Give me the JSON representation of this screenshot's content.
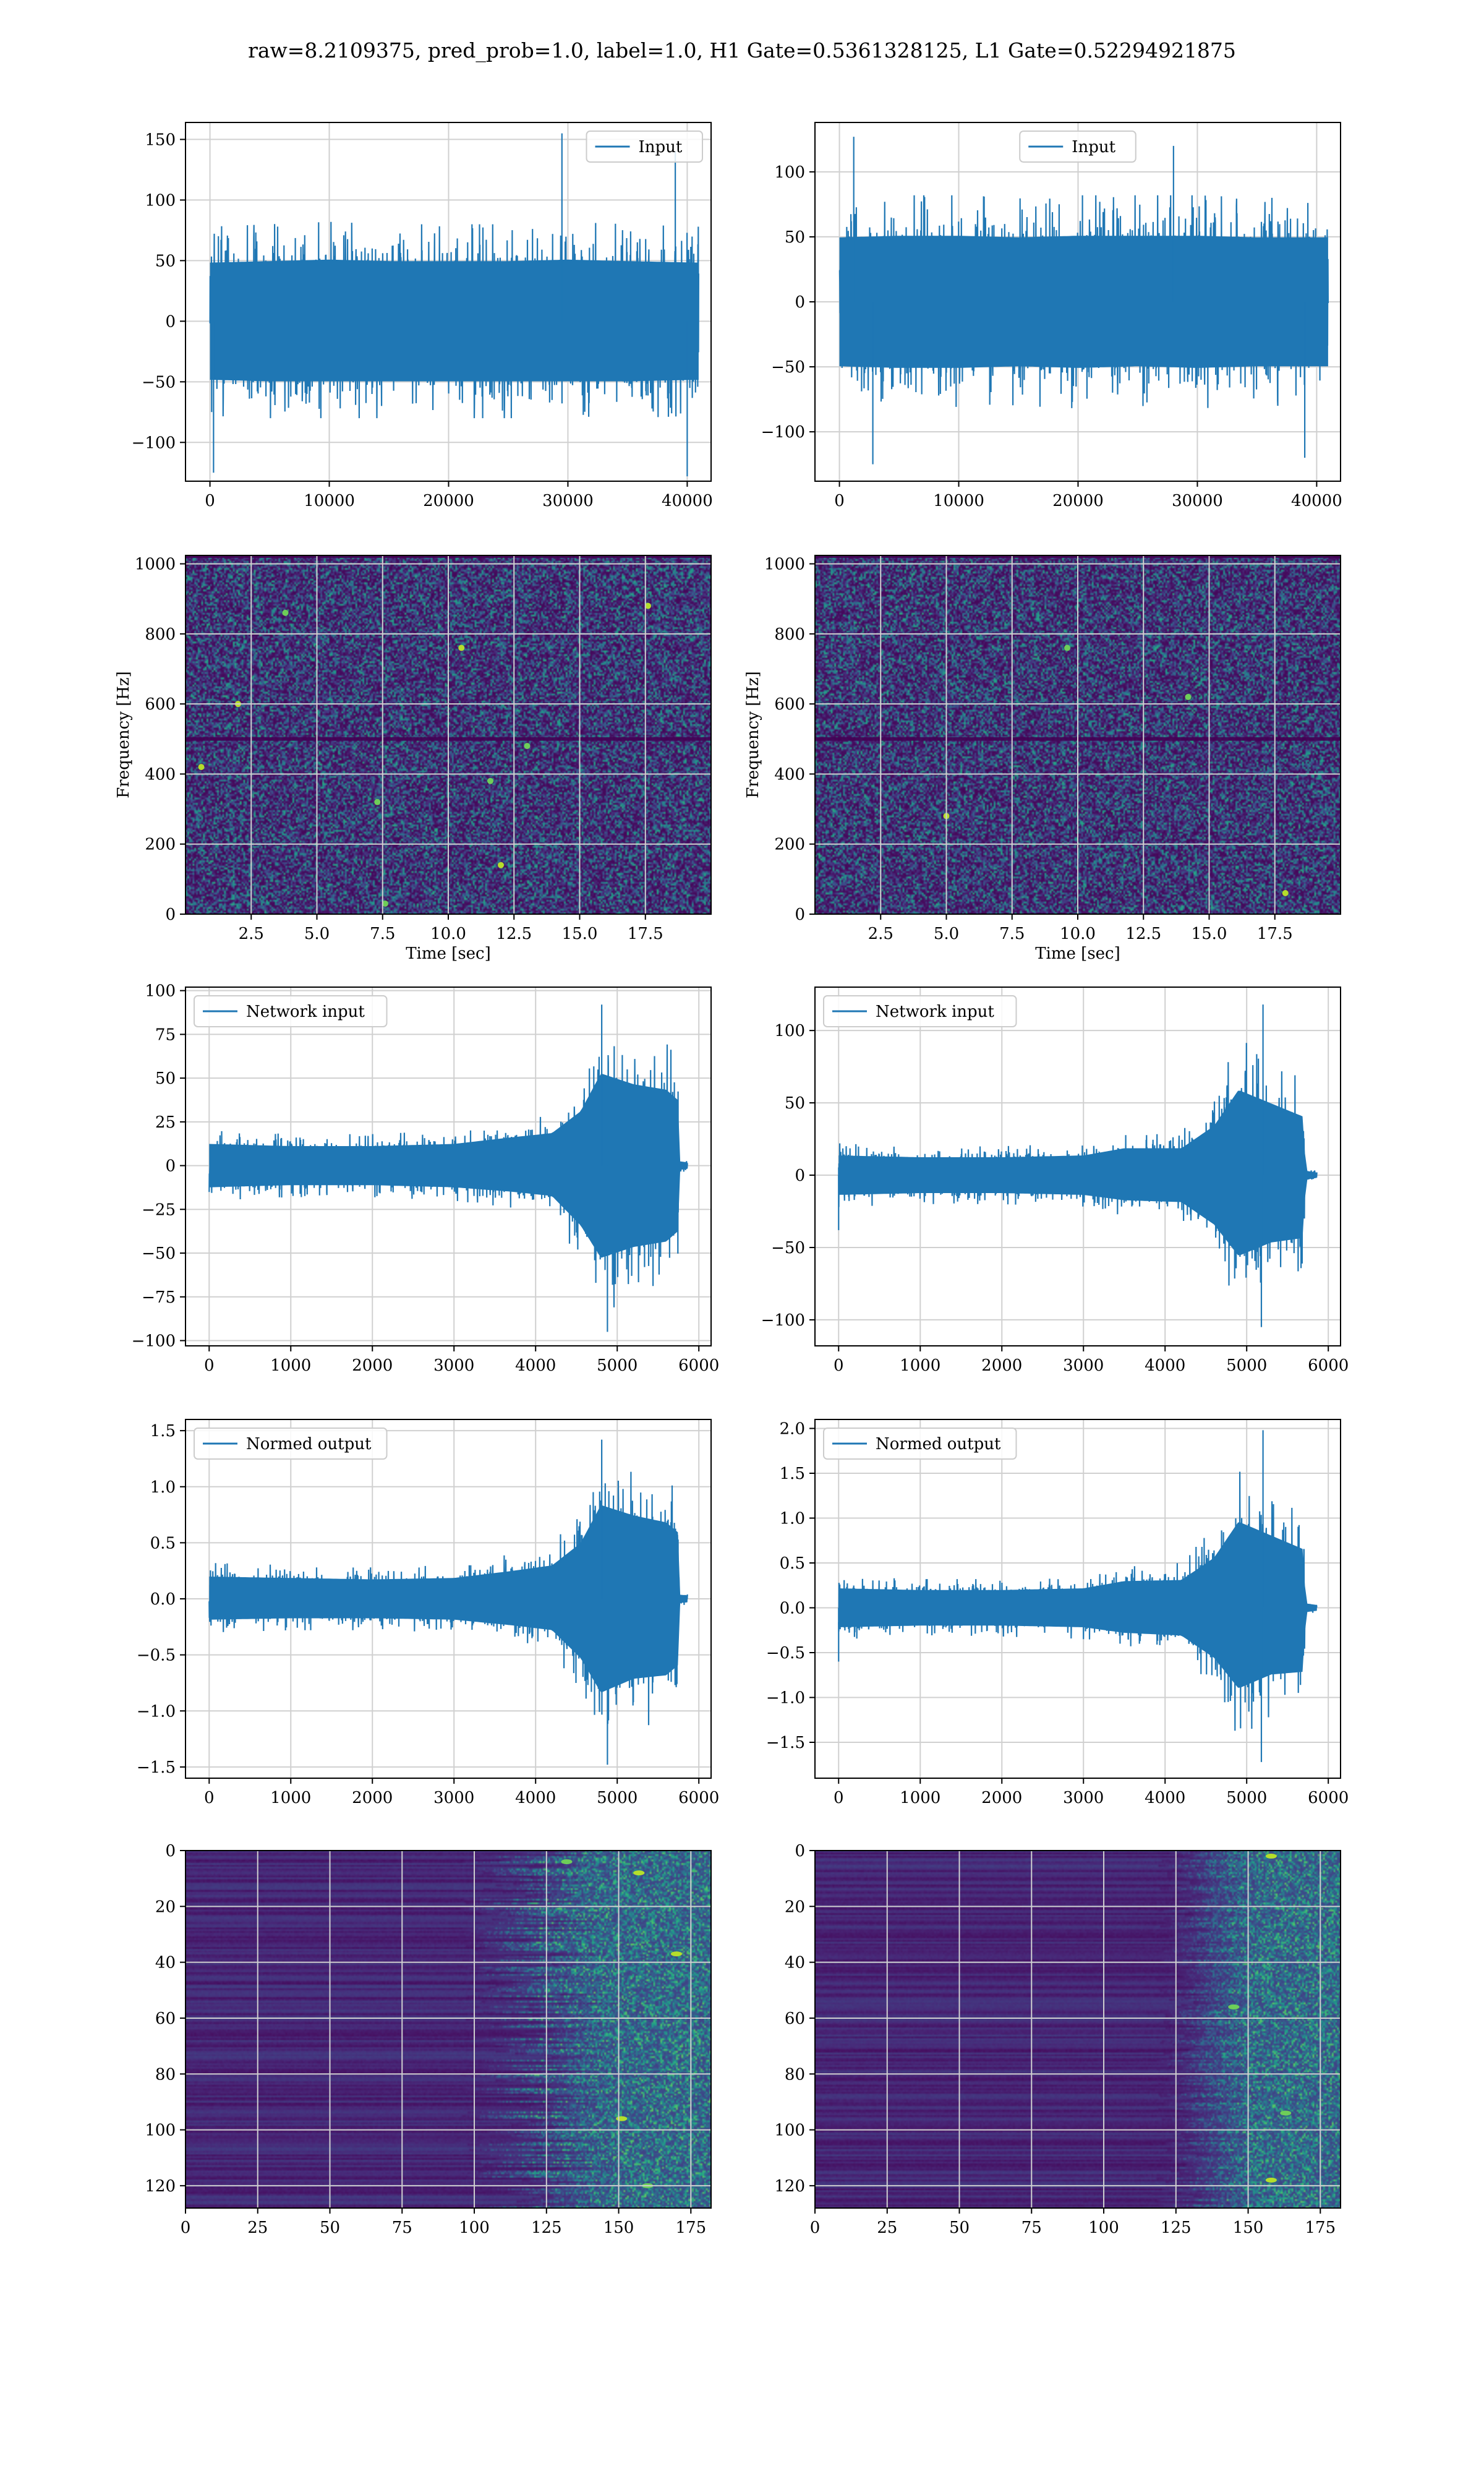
{
  "suptitle": "raw=8.2109375, pred_prob=1.0, label=1.0, H1 Gate=0.5361328125, L1 Gate=0.52294921875",
  "colors": {
    "line": "#1f77b4",
    "grid": "#d0d0d0",
    "viridis": [
      "#440154",
      "#482878",
      "#3e4989",
      "#31688e",
      "#26828e",
      "#1f9e89",
      "#35b779",
      "#6ece58",
      "#b5de2b",
      "#fde725"
    ]
  },
  "chart_data": [
    {
      "id": "h1-input",
      "type": "line",
      "col": 0,
      "row": 0,
      "legend": "Input",
      "legend_position": "upper right",
      "xlim": [
        -2050,
        42000
      ],
      "ylim": [
        -132,
        164
      ],
      "xticks": [
        0,
        10000,
        20000,
        30000,
        40000
      ],
      "xticklabels": [
        "0",
        "10000",
        "20000",
        "30000",
        "40000"
      ],
      "yticks": [
        -100,
        -50,
        0,
        50,
        100,
        150
      ],
      "yticklabels": [
        "−100",
        "−50",
        "0",
        "50",
        "100",
        "150"
      ],
      "grid": true,
      "series": [
        {
          "n_samples": 40960,
          "envelope": [
            {
              "x": 0,
              "lo": -78,
              "hi": 78
            },
            {
              "x": 5000,
              "lo": -80,
              "hi": 80
            },
            {
              "x": 10000,
              "lo": -80,
              "hi": 82
            },
            {
              "x": 15000,
              "lo": -80,
              "hi": 80
            },
            {
              "x": 20000,
              "lo": -80,
              "hi": 80
            },
            {
              "x": 25000,
              "lo": -80,
              "hi": 80
            },
            {
              "x": 30000,
              "lo": -80,
              "hi": 82
            },
            {
              "x": 35000,
              "lo": -80,
              "hi": 80
            },
            {
              "x": 40960,
              "lo": -78,
              "hi": 78
            }
          ],
          "peaks": [
            {
              "x": 29500,
              "y": 155
            },
            {
              "x": 39000,
              "y": 140
            },
            {
              "x": 300,
              "y": -125
            },
            {
              "x": 40000,
              "y": -128
            }
          ]
        }
      ]
    },
    {
      "id": "l1-input",
      "type": "line",
      "col": 1,
      "row": 0,
      "legend": "Input",
      "legend_position": "upper center",
      "xlim": [
        -2050,
        42000
      ],
      "ylim": [
        -138,
        138
      ],
      "xticks": [
        0,
        10000,
        20000,
        30000,
        40000
      ],
      "xticklabels": [
        "0",
        "10000",
        "20000",
        "30000",
        "40000"
      ],
      "yticks": [
        -100,
        -50,
        0,
        50,
        100
      ],
      "yticklabels": [
        "−100",
        "−50",
        "0",
        "50",
        "100"
      ],
      "grid": true,
      "series": [
        {
          "n_samples": 40960,
          "envelope": [
            {
              "x": 0,
              "lo": -80,
              "hi": 80
            },
            {
              "x": 5000,
              "lo": -82,
              "hi": 82
            },
            {
              "x": 10000,
              "lo": -82,
              "hi": 82
            },
            {
              "x": 15000,
              "lo": -80,
              "hi": 80
            },
            {
              "x": 20000,
              "lo": -82,
              "hi": 82
            },
            {
              "x": 25000,
              "lo": -80,
              "hi": 82
            },
            {
              "x": 30000,
              "lo": -82,
              "hi": 82
            },
            {
              "x": 35000,
              "lo": -80,
              "hi": 80
            },
            {
              "x": 40960,
              "lo": -80,
              "hi": 80
            }
          ],
          "peaks": [
            {
              "x": 1200,
              "y": 127
            },
            {
              "x": 28000,
              "y": 120
            },
            {
              "x": 2800,
              "y": -125
            },
            {
              "x": 39000,
              "y": -120
            }
          ]
        }
      ]
    },
    {
      "id": "h1-spectrogram",
      "type": "heatmap",
      "col": 0,
      "row": 1,
      "xlabel": "Time [sec]",
      "ylabel": "Frequency [Hz]",
      "xlim": [
        0,
        20
      ],
      "ylim": [
        0,
        1024
      ],
      "xticks": [
        2.5,
        5.0,
        7.5,
        10.0,
        12.5,
        15.0,
        17.5
      ],
      "xticklabels": [
        "2.5",
        "5.0",
        "7.5",
        "10.0",
        "12.5",
        "15.0",
        "17.5"
      ],
      "yticks": [
        0,
        200,
        400,
        600,
        800,
        1000
      ],
      "yticklabels": [
        "0",
        "200",
        "400",
        "600",
        "800",
        "1000"
      ],
      "grid": true,
      "colormap": "viridis",
      "dark_bands": [
        {
          "y": 500,
          "width": 10
        },
        {
          "y": 1020,
          "width": 6
        }
      ],
      "hot_spots": [
        {
          "x": 17.6,
          "y": 880
        },
        {
          "x": 3.8,
          "y": 860
        },
        {
          "x": 10.5,
          "y": 760
        },
        {
          "x": 13.0,
          "y": 480
        },
        {
          "x": 0.6,
          "y": 420
        },
        {
          "x": 7.3,
          "y": 320
        },
        {
          "x": 12.0,
          "y": 140
        },
        {
          "x": 7.6,
          "y": 30
        },
        {
          "x": 2.0,
          "y": 600
        },
        {
          "x": 11.6,
          "y": 380
        }
      ]
    },
    {
      "id": "l1-spectrogram",
      "type": "heatmap",
      "col": 1,
      "row": 1,
      "xlabel": "Time [sec]",
      "ylabel": "Frequency [Hz]",
      "xlim": [
        0,
        20
      ],
      "ylim": [
        0,
        1024
      ],
      "xticks": [
        2.5,
        5.0,
        7.5,
        10.0,
        12.5,
        15.0,
        17.5
      ],
      "xticklabels": [
        "2.5",
        "5.0",
        "7.5",
        "10.0",
        "12.5",
        "15.0",
        "17.5"
      ],
      "yticks": [
        0,
        200,
        400,
        600,
        800,
        1000
      ],
      "yticklabels": [
        "0",
        "200",
        "400",
        "600",
        "800",
        "1000"
      ],
      "grid": true,
      "colormap": "viridis",
      "dark_bands": [
        {
          "y": 500,
          "width": 10
        },
        {
          "y": 1020,
          "width": 6
        }
      ],
      "hot_spots": [
        {
          "x": 17.9,
          "y": 60
        },
        {
          "x": 9.6,
          "y": 760
        },
        {
          "x": 5.0,
          "y": 280
        },
        {
          "x": 14.2,
          "y": 620
        }
      ]
    },
    {
      "id": "h1-network-input",
      "type": "line",
      "col": 0,
      "row": 2,
      "legend": "Network input",
      "legend_position": "upper left",
      "xlim": [
        -290,
        6150
      ],
      "ylim": [
        -103,
        102
      ],
      "xticks": [
        0,
        1000,
        2000,
        3000,
        4000,
        5000,
        6000
      ],
      "xticklabels": [
        "0",
        "1000",
        "2000",
        "3000",
        "4000",
        "5000",
        "6000"
      ],
      "yticks": [
        -100,
        -75,
        -50,
        -25,
        0,
        25,
        50,
        75,
        100
      ],
      "yticklabels": [
        "−100",
        "−75",
        "−50",
        "−25",
        "0",
        "25",
        "50",
        "75",
        "100"
      ],
      "grid": true,
      "series": [
        {
          "n_samples": 5860,
          "envelope": [
            {
              "x": 0,
              "lo": -20,
              "hi": 20
            },
            {
              "x": 1000,
              "lo": -18,
              "hi": 18
            },
            {
              "x": 2000,
              "lo": -18,
              "hi": 18
            },
            {
              "x": 3000,
              "lo": -20,
              "hi": 20
            },
            {
              "x": 3700,
              "lo": -24,
              "hi": 26
            },
            {
              "x": 4200,
              "lo": -28,
              "hi": 30
            },
            {
              "x": 4550,
              "lo": -55,
              "hi": 50
            },
            {
              "x": 4800,
              "lo": -85,
              "hi": 85
            },
            {
              "x": 5200,
              "lo": -75,
              "hi": 75
            },
            {
              "x": 5600,
              "lo": -70,
              "hi": 70
            },
            {
              "x": 5750,
              "lo": -60,
              "hi": 60
            },
            {
              "x": 5760,
              "lo": -4,
              "hi": 4
            },
            {
              "x": 5860,
              "lo": -3,
              "hi": 3
            }
          ],
          "peaks": [
            {
              "x": 4810,
              "y": 92
            },
            {
              "x": 4880,
              "y": -95
            }
          ]
        }
      ]
    },
    {
      "id": "l1-network-input",
      "type": "line",
      "col": 1,
      "row": 2,
      "legend": "Network input",
      "legend_position": "upper left",
      "xlim": [
        -290,
        6150
      ],
      "ylim": [
        -118,
        130
      ],
      "xticks": [
        0,
        1000,
        2000,
        3000,
        4000,
        5000,
        6000
      ],
      "xticklabels": [
        "0",
        "1000",
        "2000",
        "3000",
        "4000",
        "5000",
        "6000"
      ],
      "yticks": [
        -100,
        -50,
        0,
        50,
        100
      ],
      "yticklabels": [
        "−100",
        "−50",
        "0",
        "50",
        "100"
      ],
      "grid": true,
      "series": [
        {
          "n_samples": 5860,
          "envelope": [
            {
              "x": 0,
              "lo": -22,
              "hi": 22
            },
            {
              "x": 1000,
              "lo": -20,
              "hi": 20
            },
            {
              "x": 2000,
              "lo": -20,
              "hi": 20
            },
            {
              "x": 3000,
              "lo": -22,
              "hi": 22
            },
            {
              "x": 3500,
              "lo": -28,
              "hi": 30
            },
            {
              "x": 4200,
              "lo": -30,
              "hi": 30
            },
            {
              "x": 4600,
              "lo": -55,
              "hi": 55
            },
            {
              "x": 4900,
              "lo": -90,
              "hi": 95
            },
            {
              "x": 5300,
              "lo": -75,
              "hi": 80
            },
            {
              "x": 5700,
              "lo": -70,
              "hi": 65
            },
            {
              "x": 5720,
              "lo": -5,
              "hi": 5
            },
            {
              "x": 5860,
              "lo": -3,
              "hi": 3
            }
          ],
          "peaks": [
            {
              "x": 5200,
              "y": 118
            },
            {
              "x": 5180,
              "y": -105
            },
            {
              "x": 0,
              "y": -38
            }
          ]
        }
      ]
    },
    {
      "id": "h1-normed-output",
      "type": "line",
      "col": 0,
      "row": 3,
      "legend": "Normed output",
      "legend_position": "upper left",
      "xlim": [
        -290,
        6150
      ],
      "ylim": [
        -1.6,
        1.6
      ],
      "xticks": [
        0,
        1000,
        2000,
        3000,
        4000,
        5000,
        6000
      ],
      "xticklabels": [
        "0",
        "1000",
        "2000",
        "3000",
        "4000",
        "5000",
        "6000"
      ],
      "yticks": [
        -1.5,
        -1.0,
        -0.5,
        0.0,
        0.5,
        1.0,
        1.5
      ],
      "yticklabels": [
        "−1.5",
        "−1.0",
        "−0.5",
        "0.0",
        "0.5",
        "1.0",
        "1.5"
      ],
      "grid": true,
      "series": [
        {
          "n_samples": 5860,
          "envelope": [
            {
              "x": 0,
              "lo": -0.3,
              "hi": 0.32
            },
            {
              "x": 1000,
              "lo": -0.28,
              "hi": 0.3
            },
            {
              "x": 2000,
              "lo": -0.28,
              "hi": 0.28
            },
            {
              "x": 3000,
              "lo": -0.3,
              "hi": 0.3
            },
            {
              "x": 3700,
              "lo": -0.38,
              "hi": 0.4
            },
            {
              "x": 4200,
              "lo": -0.45,
              "hi": 0.48
            },
            {
              "x": 4550,
              "lo": -0.85,
              "hi": 0.8
            },
            {
              "x": 4800,
              "lo": -1.35,
              "hi": 1.35
            },
            {
              "x": 5200,
              "lo": -1.15,
              "hi": 1.2
            },
            {
              "x": 5600,
              "lo": -1.1,
              "hi": 1.1
            },
            {
              "x": 5750,
              "lo": -0.95,
              "hi": 0.95
            },
            {
              "x": 5760,
              "lo": -0.06,
              "hi": 0.06
            },
            {
              "x": 5860,
              "lo": -0.05,
              "hi": 0.05
            }
          ],
          "peaks": [
            {
              "x": 4810,
              "y": 1.42
            },
            {
              "x": 4880,
              "y": -1.48
            }
          ]
        }
      ]
    },
    {
      "id": "l1-normed-output",
      "type": "line",
      "col": 1,
      "row": 3,
      "legend": "Normed output",
      "legend_position": "upper left",
      "xlim": [
        -290,
        6150
      ],
      "ylim": [
        -1.9,
        2.1
      ],
      "xticks": [
        0,
        1000,
        2000,
        3000,
        4000,
        5000,
        6000
      ],
      "xticklabels": [
        "0",
        "1000",
        "2000",
        "3000",
        "4000",
        "5000",
        "6000"
      ],
      "yticks": [
        -1.5,
        -1.0,
        -0.5,
        0.0,
        0.5,
        1.0,
        1.5,
        2.0
      ],
      "yticklabels": [
        "−1.5",
        "−1.0",
        "−0.5",
        "0.0",
        "0.5",
        "1.0",
        "1.5",
        "2.0"
      ],
      "grid": true,
      "series": [
        {
          "n_samples": 5860,
          "envelope": [
            {
              "x": 0,
              "lo": -0.35,
              "hi": 0.35
            },
            {
              "x": 1000,
              "lo": -0.32,
              "hi": 0.32
            },
            {
              "x": 2000,
              "lo": -0.32,
              "hi": 0.32
            },
            {
              "x": 3000,
              "lo": -0.35,
              "hi": 0.35
            },
            {
              "x": 3500,
              "lo": -0.45,
              "hi": 0.48
            },
            {
              "x": 4200,
              "lo": -0.5,
              "hi": 0.5
            },
            {
              "x": 4600,
              "lo": -0.9,
              "hi": 0.9
            },
            {
              "x": 4900,
              "lo": -1.45,
              "hi": 1.55
            },
            {
              "x": 5300,
              "lo": -1.2,
              "hi": 1.3
            },
            {
              "x": 5700,
              "lo": -1.15,
              "hi": 1.05
            },
            {
              "x": 5720,
              "lo": -0.08,
              "hi": 0.08
            },
            {
              "x": 5860,
              "lo": -0.05,
              "hi": 0.05
            }
          ],
          "peaks": [
            {
              "x": 5200,
              "y": 1.98
            },
            {
              "x": 5180,
              "y": -1.72
            },
            {
              "x": 0,
              "y": -0.6
            }
          ]
        }
      ]
    },
    {
      "id": "h1-feature-map",
      "type": "heatmap",
      "col": 0,
      "row": 4,
      "xlim": [
        0,
        182
      ],
      "ylim": [
        0,
        128
      ],
      "y_inverted": true,
      "xticks": [
        0,
        25,
        50,
        75,
        100,
        125,
        150,
        175
      ],
      "xticklabels": [
        "0",
        "25",
        "50",
        "75",
        "100",
        "125",
        "150",
        "175"
      ],
      "yticks": [
        0,
        20,
        40,
        60,
        80,
        100,
        120
      ],
      "yticklabels": [
        "0",
        "20",
        "40",
        "60",
        "80",
        "100",
        "120"
      ],
      "grid": true,
      "colormap": "viridis",
      "onset_range": [
        95,
        130
      ],
      "hot_spots": [
        {
          "x": 157,
          "y": 8
        },
        {
          "x": 132,
          "y": 4
        },
        {
          "x": 151,
          "y": 96
        },
        {
          "x": 160,
          "y": 120
        },
        {
          "x": 170,
          "y": 37
        }
      ]
    },
    {
      "id": "l1-feature-map",
      "type": "heatmap",
      "col": 1,
      "row": 4,
      "xlim": [
        0,
        182
      ],
      "ylim": [
        0,
        128
      ],
      "y_inverted": true,
      "xticks": [
        0,
        25,
        50,
        75,
        100,
        125,
        150,
        175
      ],
      "xticklabels": [
        "0",
        "25",
        "50",
        "75",
        "100",
        "125",
        "150",
        "175"
      ],
      "yticks": [
        0,
        20,
        40,
        60,
        80,
        100,
        120
      ],
      "yticklabels": [
        "0",
        "20",
        "40",
        "60",
        "80",
        "100",
        "120"
      ],
      "grid": true,
      "colormap": "viridis",
      "onset_range": [
        118,
        132
      ],
      "hot_spots": [
        {
          "x": 158,
          "y": 2
        },
        {
          "x": 163,
          "y": 94
        },
        {
          "x": 158,
          "y": 118
        },
        {
          "x": 145,
          "y": 56
        }
      ]
    }
  ]
}
